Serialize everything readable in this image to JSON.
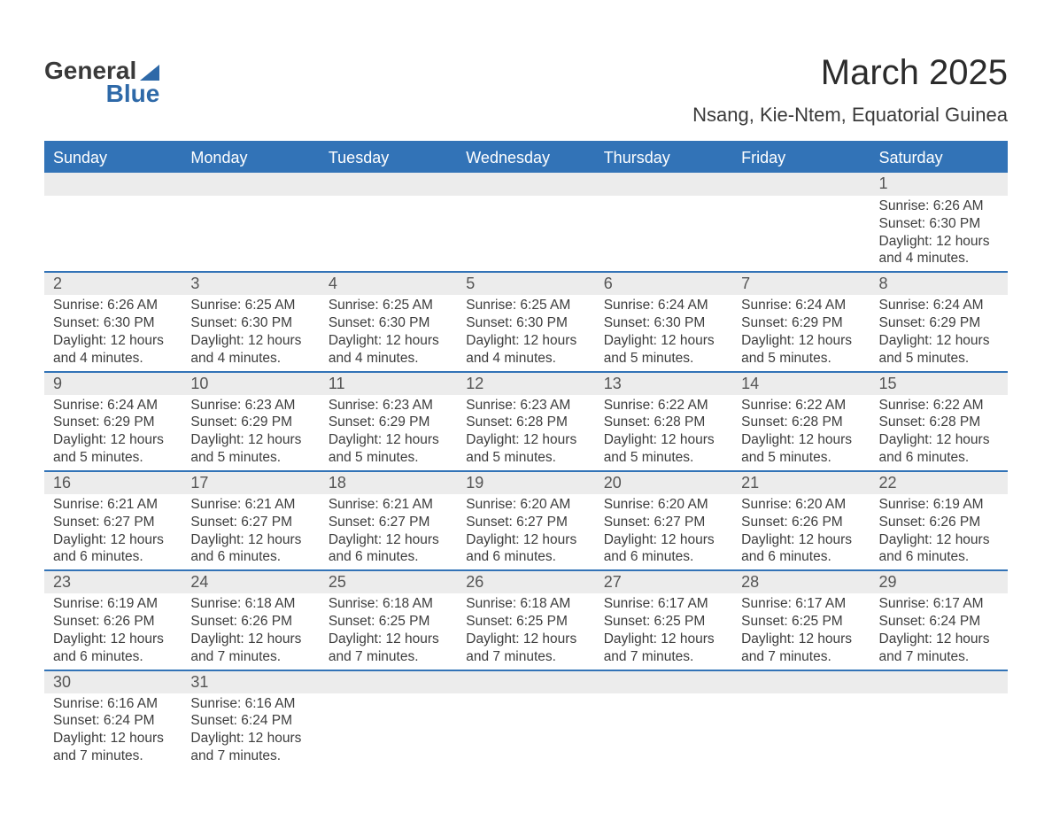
{
  "logo": {
    "line1": "General",
    "line2": "Blue"
  },
  "title": {
    "month": "March 2025",
    "location": "Nsang, Kie-Ntem, Equatorial Guinea"
  },
  "colors": {
    "header_bg": "#3273b7",
    "header_text": "#ffffff",
    "daynum_bg": "#ececec",
    "row_divider": "#3273b7",
    "body_text": "#3d3d3d",
    "logo_accent": "#2e69a8"
  },
  "typography": {
    "title_fontsize_pt": 30,
    "location_fontsize_pt": 16,
    "header_fontsize_pt": 13,
    "body_fontsize_pt": 11
  },
  "weekdays": [
    "Sunday",
    "Monday",
    "Tuesday",
    "Wednesday",
    "Thursday",
    "Friday",
    "Saturday"
  ],
  "weeks": [
    [
      null,
      null,
      null,
      null,
      null,
      null,
      {
        "n": "1",
        "sunrise": "Sunrise: 6:26 AM",
        "sunset": "Sunset: 6:30 PM",
        "day1": "Daylight: 12 hours",
        "day2": "and 4 minutes."
      }
    ],
    [
      {
        "n": "2",
        "sunrise": "Sunrise: 6:26 AM",
        "sunset": "Sunset: 6:30 PM",
        "day1": "Daylight: 12 hours",
        "day2": "and 4 minutes."
      },
      {
        "n": "3",
        "sunrise": "Sunrise: 6:25 AM",
        "sunset": "Sunset: 6:30 PM",
        "day1": "Daylight: 12 hours",
        "day2": "and 4 minutes."
      },
      {
        "n": "4",
        "sunrise": "Sunrise: 6:25 AM",
        "sunset": "Sunset: 6:30 PM",
        "day1": "Daylight: 12 hours",
        "day2": "and 4 minutes."
      },
      {
        "n": "5",
        "sunrise": "Sunrise: 6:25 AM",
        "sunset": "Sunset: 6:30 PM",
        "day1": "Daylight: 12 hours",
        "day2": "and 4 minutes."
      },
      {
        "n": "6",
        "sunrise": "Sunrise: 6:24 AM",
        "sunset": "Sunset: 6:30 PM",
        "day1": "Daylight: 12 hours",
        "day2": "and 5 minutes."
      },
      {
        "n": "7",
        "sunrise": "Sunrise: 6:24 AM",
        "sunset": "Sunset: 6:29 PM",
        "day1": "Daylight: 12 hours",
        "day2": "and 5 minutes."
      },
      {
        "n": "8",
        "sunrise": "Sunrise: 6:24 AM",
        "sunset": "Sunset: 6:29 PM",
        "day1": "Daylight: 12 hours",
        "day2": "and 5 minutes."
      }
    ],
    [
      {
        "n": "9",
        "sunrise": "Sunrise: 6:24 AM",
        "sunset": "Sunset: 6:29 PM",
        "day1": "Daylight: 12 hours",
        "day2": "and 5 minutes."
      },
      {
        "n": "10",
        "sunrise": "Sunrise: 6:23 AM",
        "sunset": "Sunset: 6:29 PM",
        "day1": "Daylight: 12 hours",
        "day2": "and 5 minutes."
      },
      {
        "n": "11",
        "sunrise": "Sunrise: 6:23 AM",
        "sunset": "Sunset: 6:29 PM",
        "day1": "Daylight: 12 hours",
        "day2": "and 5 minutes."
      },
      {
        "n": "12",
        "sunrise": "Sunrise: 6:23 AM",
        "sunset": "Sunset: 6:28 PM",
        "day1": "Daylight: 12 hours",
        "day2": "and 5 minutes."
      },
      {
        "n": "13",
        "sunrise": "Sunrise: 6:22 AM",
        "sunset": "Sunset: 6:28 PM",
        "day1": "Daylight: 12 hours",
        "day2": "and 5 minutes."
      },
      {
        "n": "14",
        "sunrise": "Sunrise: 6:22 AM",
        "sunset": "Sunset: 6:28 PM",
        "day1": "Daylight: 12 hours",
        "day2": "and 5 minutes."
      },
      {
        "n": "15",
        "sunrise": "Sunrise: 6:22 AM",
        "sunset": "Sunset: 6:28 PM",
        "day1": "Daylight: 12 hours",
        "day2": "and 6 minutes."
      }
    ],
    [
      {
        "n": "16",
        "sunrise": "Sunrise: 6:21 AM",
        "sunset": "Sunset: 6:27 PM",
        "day1": "Daylight: 12 hours",
        "day2": "and 6 minutes."
      },
      {
        "n": "17",
        "sunrise": "Sunrise: 6:21 AM",
        "sunset": "Sunset: 6:27 PM",
        "day1": "Daylight: 12 hours",
        "day2": "and 6 minutes."
      },
      {
        "n": "18",
        "sunrise": "Sunrise: 6:21 AM",
        "sunset": "Sunset: 6:27 PM",
        "day1": "Daylight: 12 hours",
        "day2": "and 6 minutes."
      },
      {
        "n": "19",
        "sunrise": "Sunrise: 6:20 AM",
        "sunset": "Sunset: 6:27 PM",
        "day1": "Daylight: 12 hours",
        "day2": "and 6 minutes."
      },
      {
        "n": "20",
        "sunrise": "Sunrise: 6:20 AM",
        "sunset": "Sunset: 6:27 PM",
        "day1": "Daylight: 12 hours",
        "day2": "and 6 minutes."
      },
      {
        "n": "21",
        "sunrise": "Sunrise: 6:20 AM",
        "sunset": "Sunset: 6:26 PM",
        "day1": "Daylight: 12 hours",
        "day2": "and 6 minutes."
      },
      {
        "n": "22",
        "sunrise": "Sunrise: 6:19 AM",
        "sunset": "Sunset: 6:26 PM",
        "day1": "Daylight: 12 hours",
        "day2": "and 6 minutes."
      }
    ],
    [
      {
        "n": "23",
        "sunrise": "Sunrise: 6:19 AM",
        "sunset": "Sunset: 6:26 PM",
        "day1": "Daylight: 12 hours",
        "day2": "and 6 minutes."
      },
      {
        "n": "24",
        "sunrise": "Sunrise: 6:18 AM",
        "sunset": "Sunset: 6:26 PM",
        "day1": "Daylight: 12 hours",
        "day2": "and 7 minutes."
      },
      {
        "n": "25",
        "sunrise": "Sunrise: 6:18 AM",
        "sunset": "Sunset: 6:25 PM",
        "day1": "Daylight: 12 hours",
        "day2": "and 7 minutes."
      },
      {
        "n": "26",
        "sunrise": "Sunrise: 6:18 AM",
        "sunset": "Sunset: 6:25 PM",
        "day1": "Daylight: 12 hours",
        "day2": "and 7 minutes."
      },
      {
        "n": "27",
        "sunrise": "Sunrise: 6:17 AM",
        "sunset": "Sunset: 6:25 PM",
        "day1": "Daylight: 12 hours",
        "day2": "and 7 minutes."
      },
      {
        "n": "28",
        "sunrise": "Sunrise: 6:17 AM",
        "sunset": "Sunset: 6:25 PM",
        "day1": "Daylight: 12 hours",
        "day2": "and 7 minutes."
      },
      {
        "n": "29",
        "sunrise": "Sunrise: 6:17 AM",
        "sunset": "Sunset: 6:24 PM",
        "day1": "Daylight: 12 hours",
        "day2": "and 7 minutes."
      }
    ],
    [
      {
        "n": "30",
        "sunrise": "Sunrise: 6:16 AM",
        "sunset": "Sunset: 6:24 PM",
        "day1": "Daylight: 12 hours",
        "day2": "and 7 minutes."
      },
      {
        "n": "31",
        "sunrise": "Sunrise: 6:16 AM",
        "sunset": "Sunset: 6:24 PM",
        "day1": "Daylight: 12 hours",
        "day2": "and 7 minutes."
      },
      null,
      null,
      null,
      null,
      null
    ]
  ]
}
